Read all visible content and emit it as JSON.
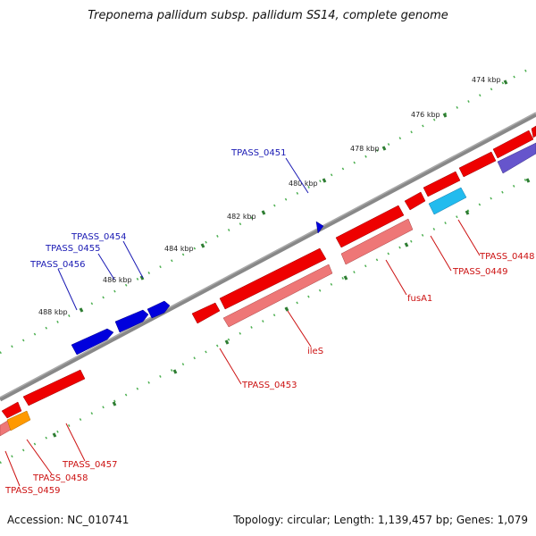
{
  "title": "Treponema pallidum subsp. pallidum SS14, complete genome",
  "accession_label": "Accession: NC_010741",
  "summary_label": "Topology: circular; Length: 1,139,457 bp; Genes: 1,079",
  "colors": {
    "backbone": "#888888",
    "tick_mark": "#2e7d32",
    "tick_dot": "#4caf50",
    "forward_label": "#1a1ab4",
    "reverse_label": "#cc1111",
    "forward_gene": "#0000dd",
    "reverse_gene": "#ee0000",
    "reverse_feature": "#ee7777",
    "cyan_feature": "#22bbee",
    "orange_feature": "#ff9900",
    "purple_feature": "#6655cc"
  },
  "scale_labels": [
    "474 kbp",
    "476 kbp",
    "478 kbp",
    "480 kbp",
    "482 kbp",
    "484 kbp",
    "486 kbp",
    "488 kbp"
  ],
  "gene_labels": {
    "forward": [
      "TPASS_0451",
      "TPASS_0454",
      "TPASS_0455",
      "TPASS_0456"
    ],
    "reverse": [
      "TPASS_0448",
      "TPASS_0449",
      "fusA1",
      "ileS",
      "TPASS_0453",
      "TPASS_0457",
      "TPASS_0458",
      "TPASS_0459"
    ]
  }
}
